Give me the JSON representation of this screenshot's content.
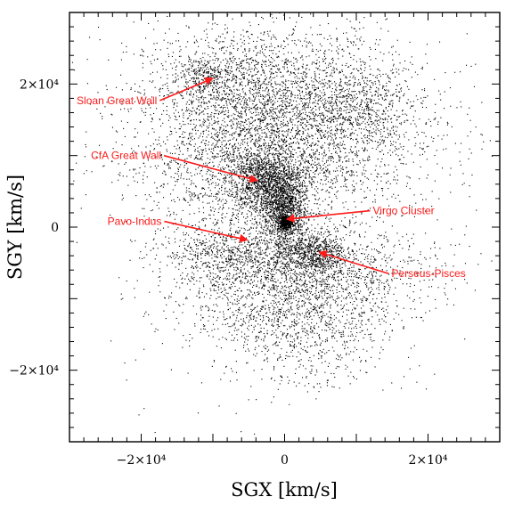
{
  "chart_data": {
    "type": "scatter",
    "title": "",
    "xlabel": "SGX [km/s]",
    "ylabel": "SGY [km/s]",
    "xlim": [
      -30000,
      30000
    ],
    "ylim": [
      -30000,
      30000
    ],
    "grid": false,
    "x_ticks": [
      {
        "value": -20000,
        "label": "−2×10⁴"
      },
      {
        "value": 0,
        "label": "0"
      },
      {
        "value": 20000,
        "label": "2×10⁴"
      }
    ],
    "y_ticks": [
      {
        "value": 20000,
        "label": "2×10⁴"
      },
      {
        "value": 0,
        "label": "0"
      },
      {
        "value": -20000,
        "label": "−2×10⁴"
      }
    ],
    "point_color": "#000000",
    "annotation_color": "#ff1a1a",
    "clusters": [
      {
        "cx": -4000,
        "cy": 17000,
        "sx": 9000,
        "sy": 6000,
        "n": 2200
      },
      {
        "cx": 3000,
        "cy": 14500,
        "sx": 9500,
        "sy": 6000,
        "n": 2000
      },
      {
        "cx": -11000,
        "cy": 21000,
        "sx": 2500,
        "sy": 1500,
        "n": 300
      },
      {
        "cx": 11000,
        "cy": 17000,
        "sx": 3000,
        "sy": 2500,
        "n": 250
      },
      {
        "cx": -2500,
        "cy": 6500,
        "sx": 2500,
        "sy": 2200,
        "n": 1200
      },
      {
        "cx": 0,
        "cy": 2500,
        "sx": 1500,
        "sy": 2500,
        "n": 1100
      },
      {
        "cx": 0,
        "cy": 700,
        "sx": 500,
        "sy": 500,
        "n": 350
      },
      {
        "cx": 3500,
        "cy": -3500,
        "sx": 2500,
        "sy": 1500,
        "n": 700
      },
      {
        "cx": 2000,
        "cy": -6500,
        "sx": 9000,
        "sy": 3000,
        "n": 1600
      },
      {
        "cx": -8000,
        "cy": -3500,
        "sx": 4500,
        "sy": 2000,
        "n": 500
      },
      {
        "cx": -5000,
        "cy": 6500,
        "sx": 7500,
        "sy": 4000,
        "n": 900
      },
      {
        "cx": 1000,
        "cy": -12500,
        "sx": 7000,
        "sy": 2500,
        "n": 700
      },
      {
        "cx": 3000,
        "cy": -18500,
        "sx": 5500,
        "sy": 3000,
        "n": 250
      },
      {
        "cx": 0,
        "cy": 0,
        "sx": 12000,
        "sy": 12000,
        "n": 400
      }
    ],
    "annotations": [
      {
        "label": "Sloan Great Wall",
        "text_x": -29000,
        "text_y": 17200,
        "anchor": "start",
        "x": -10000,
        "y": 20800
      },
      {
        "label": "CfA Great Wall",
        "text_x": -27000,
        "text_y": 9500,
        "anchor": "start",
        "x": -3800,
        "y": 6500
      },
      {
        "label": "Virgo Cluster",
        "text_x": 12300,
        "text_y": 1800,
        "anchor": "start",
        "x": 300,
        "y": 1100
      },
      {
        "label": "Pavo-Indus",
        "text_x": -24700,
        "text_y": 300,
        "anchor": "start",
        "x": -5200,
        "y": -1800
      },
      {
        "label": "Perseus-Pisces",
        "text_x": 14900,
        "text_y": -7000,
        "anchor": "start",
        "x": 4800,
        "y": -3500
      }
    ]
  }
}
